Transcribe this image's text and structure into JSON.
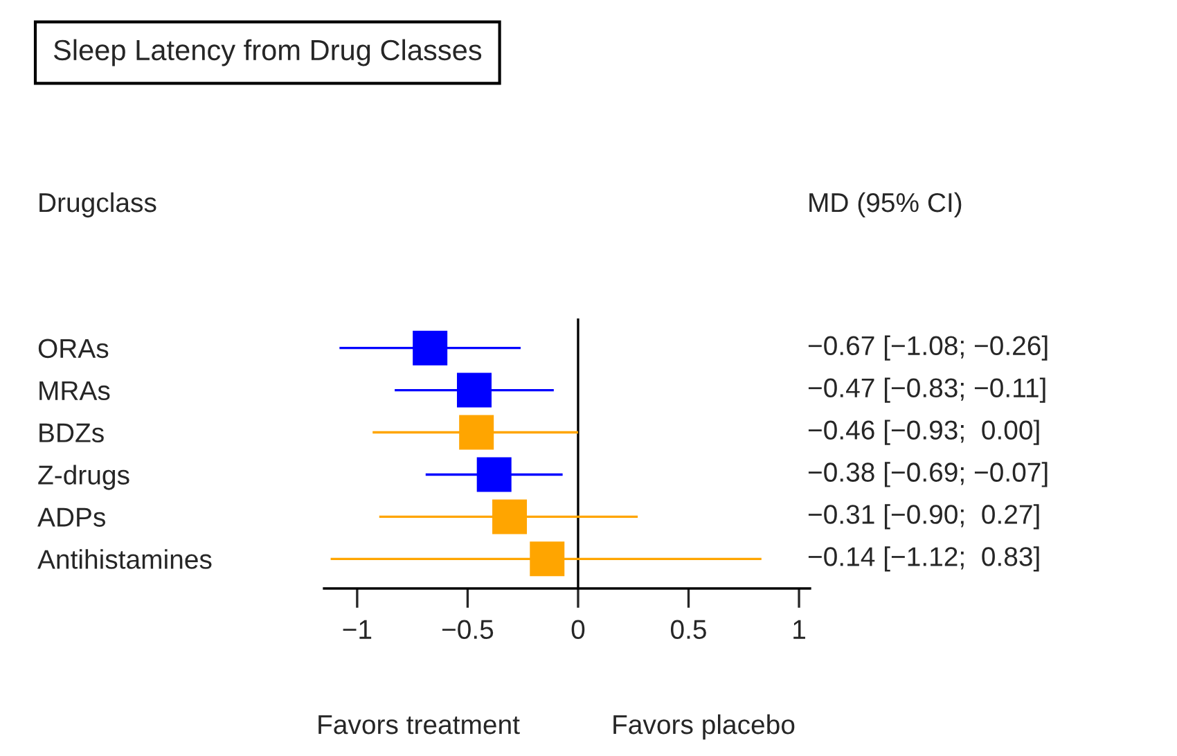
{
  "chart_data": {
    "type": "scatter",
    "orientation": "horizontal",
    "title": "Sleep Latency from Drug Classes",
    "categories": [
      "ORAs",
      "MRAs",
      "BDZs",
      "Z-drugs",
      "ADPs",
      "Antihistamines"
    ],
    "values": [
      -0.67,
      -0.47,
      -0.46,
      -0.38,
      -0.31,
      -0.14
    ],
    "errors": [
      [
        -1.08,
        -0.26
      ],
      [
        -0.83,
        -0.11
      ],
      [
        -0.93,
        0.0
      ],
      [
        -0.69,
        -0.07
      ],
      [
        -0.9,
        0.27
      ],
      [
        -1.12,
        0.83
      ]
    ],
    "colors": [
      "#0000ff",
      "#0000ff",
      "#ffa500",
      "#0000ff",
      "#ffa500",
      "#ffa500"
    ],
    "value_labels": [
      "−0.67 [−1.08; −0.26]",
      "−0.47 [−0.83; −0.11]",
      "−0.46 [−0.93;  0.00]",
      "−0.38 [−0.69; −0.07]",
      "−0.31 [−0.90;  0.27]",
      "−0.14 [−1.12;  0.83]"
    ],
    "xlim": [
      -1.15,
      1.05
    ],
    "xticks": [
      {
        "value": -1,
        "label": "−1"
      },
      {
        "value": -0.5,
        "label": "−0.5"
      },
      0,
      0.5,
      1
    ],
    "ref_lines": [
      {
        "axis": "x",
        "value": 0,
        "color": "#000000"
      }
    ],
    "marker": "square",
    "grid": false,
    "annotations": [
      "Drugclass",
      "MD (95% CI)",
      "Favors treatment",
      "Favors placebo"
    ]
  }
}
